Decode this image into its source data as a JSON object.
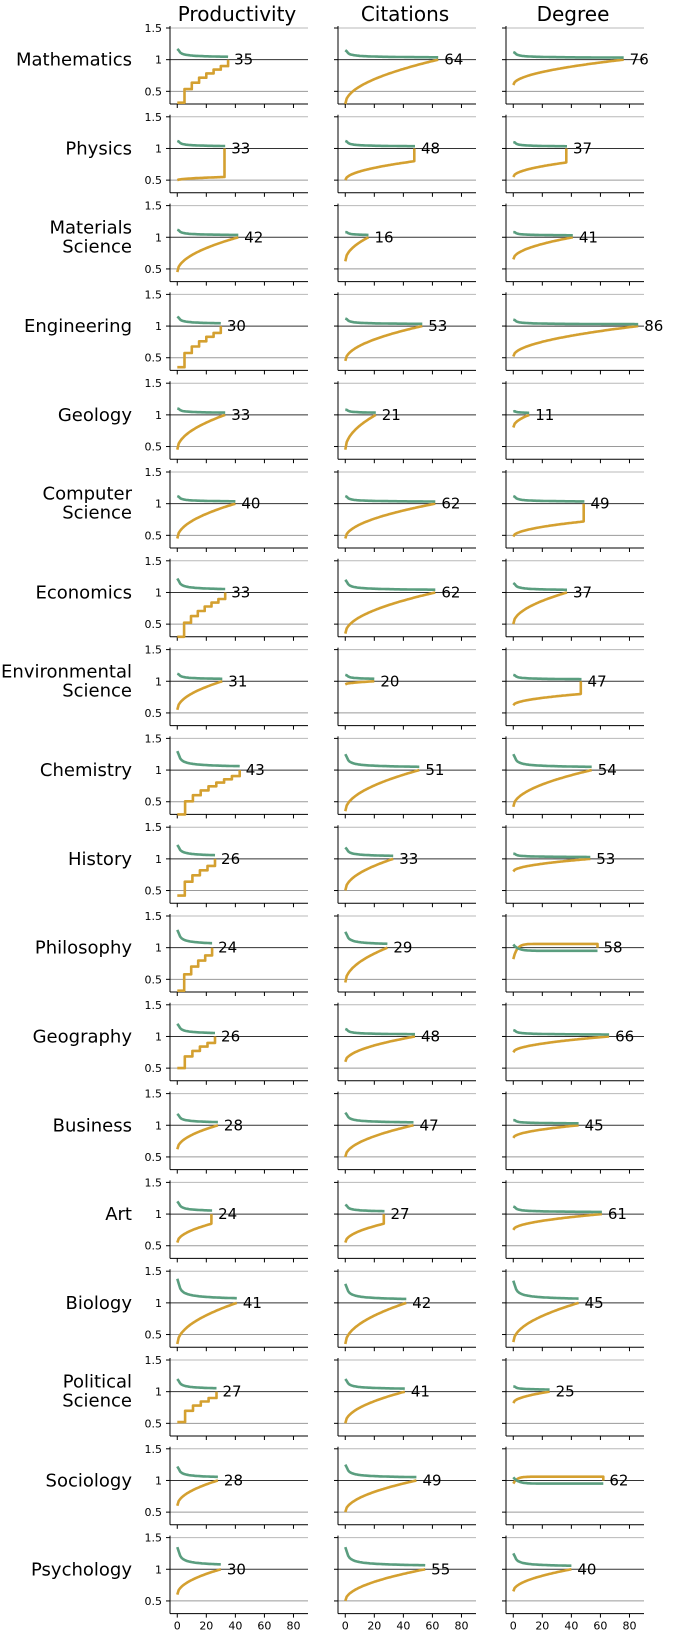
{
  "chart_data": {
    "type": "line",
    "columns": [
      "Productivity",
      "Citations",
      "Degree"
    ],
    "ylim": [
      0.3,
      1.5
    ],
    "yticks": [
      "1.5",
      "1",
      "0.5"
    ],
    "ytick_values": [
      1.5,
      1.0,
      0.5
    ],
    "xlim": [
      -5,
      90
    ],
    "xticks": [
      "0",
      "20",
      "40",
      "60",
      "80"
    ],
    "xtick_values": [
      0,
      20,
      40,
      60,
      80
    ],
    "reference_lines": [
      1.0,
      0.5
    ],
    "grid": false,
    "series_colors": {
      "upper": "#5a9e7f",
      "lower": "#d4a030"
    },
    "rows": [
      {
        "label": [
          "Mathematics"
        ],
        "panels": [
          {
            "end": 35,
            "end_label": "35",
            "u0": 1.17,
            "l0": 0.32,
            "shape": "steps"
          },
          {
            "end": 64,
            "end_label": "64",
            "u0": 1.15,
            "l0": 0.3,
            "shape": "smooth"
          },
          {
            "end": 76,
            "end_label": "76",
            "u0": 1.12,
            "l0": 0.6,
            "shape": "smooth"
          }
        ]
      },
      {
        "label": [
          "Physics"
        ],
        "panels": [
          {
            "end": 33,
            "end_label": "33",
            "u0": 1.12,
            "l0": 0.5,
            "shape": "jump",
            "l_before": 0.55
          },
          {
            "end": 48,
            "end_label": "48",
            "u0": 1.12,
            "l0": 0.5,
            "shape": "jump",
            "l_before": 0.8
          },
          {
            "end": 37,
            "end_label": "37",
            "u0": 1.1,
            "l0": 0.55,
            "shape": "jump",
            "l_before": 0.78
          }
        ]
      },
      {
        "label": [
          "Materials",
          "Science"
        ],
        "panels": [
          {
            "end": 42,
            "end_label": "42",
            "u0": 1.12,
            "l0": 0.45,
            "shape": "smooth"
          },
          {
            "end": 16,
            "end_label": "16",
            "u0": 1.08,
            "l0": 0.62,
            "shape": "smooth"
          },
          {
            "end": 41,
            "end_label": "41",
            "u0": 1.08,
            "l0": 0.65,
            "shape": "smooth"
          }
        ]
      },
      {
        "label": [
          "Engineering"
        ],
        "panels": [
          {
            "end": 30,
            "end_label": "30",
            "u0": 1.15,
            "l0": 0.35,
            "shape": "steps"
          },
          {
            "end": 53,
            "end_label": "53",
            "u0": 1.12,
            "l0": 0.45,
            "shape": "smooth"
          },
          {
            "end": 86,
            "end_label": "86",
            "u0": 1.1,
            "l0": 0.52,
            "shape": "smooth"
          }
        ]
      },
      {
        "label": [
          "Geology"
        ],
        "panels": [
          {
            "end": 33,
            "end_label": "33",
            "u0": 1.1,
            "l0": 0.45,
            "shape": "smooth"
          },
          {
            "end": 21,
            "end_label": "21",
            "u0": 1.08,
            "l0": 0.45,
            "shape": "smooth"
          },
          {
            "end": 11,
            "end_label": "11",
            "u0": 1.05,
            "l0": 0.8,
            "shape": "smooth"
          }
        ]
      },
      {
        "label": [
          "Computer",
          "Science"
        ],
        "panels": [
          {
            "end": 40,
            "end_label": "40",
            "u0": 1.12,
            "l0": 0.45,
            "shape": "smooth"
          },
          {
            "end": 62,
            "end_label": "62",
            "u0": 1.12,
            "l0": 0.45,
            "shape": "smooth"
          },
          {
            "end": 49,
            "end_label": "49",
            "u0": 1.12,
            "l0": 0.48,
            "shape": "jump",
            "l_before": 0.72
          }
        ]
      },
      {
        "label": [
          "Economics"
        ],
        "panels": [
          {
            "end": 33,
            "end_label": "33",
            "u0": 1.22,
            "l0": 0.3,
            "shape": "steps"
          },
          {
            "end": 62,
            "end_label": "62",
            "u0": 1.2,
            "l0": 0.35,
            "shape": "smooth"
          },
          {
            "end": 37,
            "end_label": "37",
            "u0": 1.15,
            "l0": 0.5,
            "shape": "smooth"
          }
        ]
      },
      {
        "label": [
          "Environmental",
          "Science"
        ],
        "panels": [
          {
            "end": 31,
            "end_label": "31",
            "u0": 1.12,
            "l0": 0.55,
            "shape": "smooth"
          },
          {
            "end": 20,
            "end_label": "20",
            "u0": 1.1,
            "l0": 0.95,
            "shape": "smooth"
          },
          {
            "end": 47,
            "end_label": "47",
            "u0": 1.1,
            "l0": 0.62,
            "shape": "jump",
            "l_before": 0.8
          }
        ]
      },
      {
        "label": [
          "Chemistry"
        ],
        "panels": [
          {
            "end": 43,
            "end_label": "43",
            "u0": 1.3,
            "l0": 0.3,
            "shape": "steps"
          },
          {
            "end": 51,
            "end_label": "51",
            "u0": 1.25,
            "l0": 0.35,
            "shape": "smooth"
          },
          {
            "end": 54,
            "end_label": "54",
            "u0": 1.25,
            "l0": 0.42,
            "shape": "smooth"
          }
        ]
      },
      {
        "label": [
          "History"
        ],
        "panels": [
          {
            "end": 26,
            "end_label": "26",
            "u0": 1.22,
            "l0": 0.42,
            "shape": "steps"
          },
          {
            "end": 33,
            "end_label": "33",
            "u0": 1.18,
            "l0": 0.5,
            "shape": "smooth"
          },
          {
            "end": 53,
            "end_label": "53",
            "u0": 1.08,
            "l0": 0.8,
            "shape": "smooth"
          }
        ]
      },
      {
        "label": [
          "Philosophy"
        ],
        "panels": [
          {
            "end": 24,
            "end_label": "24",
            "u0": 1.28,
            "l0": 0.32,
            "shape": "steps"
          },
          {
            "end": 29,
            "end_label": "29",
            "u0": 1.25,
            "l0": 0.45,
            "shape": "smooth"
          },
          {
            "end": 58,
            "end_label": "58",
            "u0": 1.05,
            "l0": 0.82,
            "shape": "crossing"
          }
        ]
      },
      {
        "label": [
          "Geography"
        ],
        "panels": [
          {
            "end": 26,
            "end_label": "26",
            "u0": 1.2,
            "l0": 0.5,
            "shape": "steps"
          },
          {
            "end": 48,
            "end_label": "48",
            "u0": 1.12,
            "l0": 0.6,
            "shape": "smooth"
          },
          {
            "end": 66,
            "end_label": "66",
            "u0": 1.1,
            "l0": 0.75,
            "shape": "smooth"
          }
        ]
      },
      {
        "label": [
          "Business"
        ],
        "panels": [
          {
            "end": 28,
            "end_label": "28",
            "u0": 1.18,
            "l0": 0.62,
            "shape": "smooth"
          },
          {
            "end": 47,
            "end_label": "47",
            "u0": 1.2,
            "l0": 0.5,
            "shape": "smooth"
          },
          {
            "end": 45,
            "end_label": "45",
            "u0": 1.08,
            "l0": 0.8,
            "shape": "smooth"
          }
        ]
      },
      {
        "label": [
          "Art"
        ],
        "panels": [
          {
            "end": 24,
            "end_label": "24",
            "u0": 1.2,
            "l0": 0.55,
            "shape": "jump",
            "l_before": 0.85
          },
          {
            "end": 27,
            "end_label": "27",
            "u0": 1.15,
            "l0": 0.55,
            "shape": "jump",
            "l_before": 0.85
          },
          {
            "end": 61,
            "end_label": "61",
            "u0": 1.12,
            "l0": 0.75,
            "shape": "smooth"
          }
        ]
      },
      {
        "label": [
          "Biology"
        ],
        "panels": [
          {
            "end": 41,
            "end_label": "41",
            "u0": 1.38,
            "l0": 0.35,
            "shape": "smooth"
          },
          {
            "end": 42,
            "end_label": "42",
            "u0": 1.3,
            "l0": 0.35,
            "shape": "smooth"
          },
          {
            "end": 45,
            "end_label": "45",
            "u0": 1.35,
            "l0": 0.38,
            "shape": "smooth"
          }
        ]
      },
      {
        "label": [
          "Political",
          "Science"
        ],
        "panels": [
          {
            "end": 27,
            "end_label": "27",
            "u0": 1.2,
            "l0": 0.52,
            "shape": "steps"
          },
          {
            "end": 41,
            "end_label": "41",
            "u0": 1.2,
            "l0": 0.5,
            "shape": "smooth"
          },
          {
            "end": 25,
            "end_label": "25",
            "u0": 1.08,
            "l0": 0.82,
            "shape": "smooth"
          }
        ]
      },
      {
        "label": [
          "Sociology"
        ],
        "panels": [
          {
            "end": 28,
            "end_label": "28",
            "u0": 1.22,
            "l0": 0.6,
            "shape": "smooth"
          },
          {
            "end": 49,
            "end_label": "49",
            "u0": 1.25,
            "l0": 0.5,
            "shape": "smooth"
          },
          {
            "end": 62,
            "end_label": "62",
            "u0": 1.05,
            "l0": 0.95,
            "shape": "crossing"
          }
        ]
      },
      {
        "label": [
          "Psychology"
        ],
        "panels": [
          {
            "end": 30,
            "end_label": "30",
            "u0": 1.35,
            "l0": 0.6,
            "shape": "smooth"
          },
          {
            "end": 55,
            "end_label": "55",
            "u0": 1.35,
            "l0": 0.5,
            "shape": "smooth"
          },
          {
            "end": 40,
            "end_label": "40",
            "u0": 1.25,
            "l0": 0.65,
            "shape": "smooth"
          }
        ]
      }
    ]
  }
}
